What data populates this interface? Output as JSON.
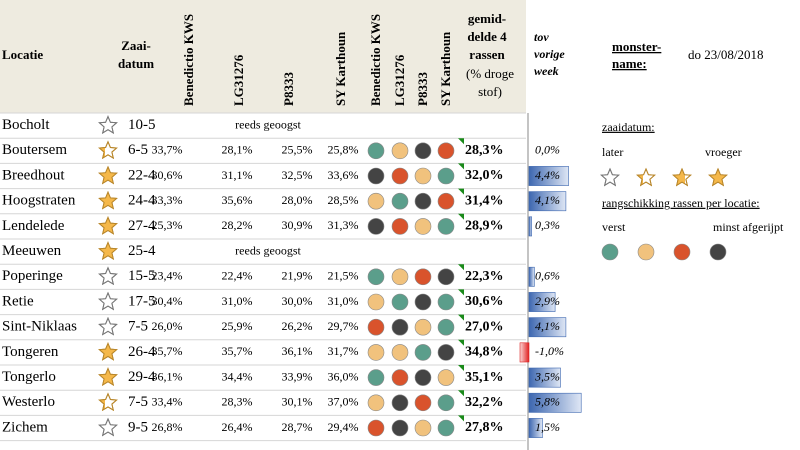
{
  "header": {
    "location": "Locatie",
    "sowing": [
      "Zaai-",
      "datum"
    ],
    "varieties": [
      "Benedictio KWS",
      "LG31276",
      "P8333",
      "SY Karthoun"
    ],
    "average": [
      "gemid-",
      "delde 4",
      "rassen"
    ],
    "average_unit": [
      "(% droge",
      "stof)"
    ],
    "change": [
      "tov",
      "vorige",
      "week"
    ]
  },
  "rows": [
    {
      "location": "Bocholt",
      "star": 0,
      "date": "10-5",
      "note": "reeds geoogst"
    },
    {
      "location": "Boutersem",
      "star": 1,
      "date": "6-5",
      "values": [
        "33,7%",
        "28,1%",
        "25,5%",
        "25,8%"
      ],
      "ranking": [
        "#5b9e8b",
        "#f1c27d",
        "#444444",
        "#d9532c"
      ],
      "average": "28,3%",
      "change": 0.0,
      "change_label": "0,0%"
    },
    {
      "location": "Breedhout",
      "star": 3,
      "date": "22-4",
      "values": [
        "30,6%",
        "31,1%",
        "32,5%",
        "33,6%"
      ],
      "ranking": [
        "#444444",
        "#d9532c",
        "#f1c27d",
        "#5b9e8b"
      ],
      "average": "32,0%",
      "change": 4.4,
      "change_label": "4,4%"
    },
    {
      "location": "Hoogstraten",
      "star": 3,
      "date": "24-4",
      "values": [
        "33,3%",
        "35,6%",
        "28,0%",
        "28,5%"
      ],
      "ranking": [
        "#f1c27d",
        "#5b9e8b",
        "#444444",
        "#d9532c"
      ],
      "average": "31,4%",
      "change": 4.1,
      "change_label": "4,1%"
    },
    {
      "location": "Lendelede",
      "star": 3,
      "date": "27-4",
      "values": [
        "25,3%",
        "28,2%",
        "30,9%",
        "31,3%"
      ],
      "ranking": [
        "#444444",
        "#d9532c",
        "#f1c27d",
        "#5b9e8b"
      ],
      "average": "28,9%",
      "change": 0.3,
      "change_label": "0,3%"
    },
    {
      "location": "Meeuwen",
      "star": 3,
      "date": "25-4",
      "note": "reeds geoogst"
    },
    {
      "location": "Poperinge",
      "star": 0,
      "date": "15-5",
      "values": [
        "23,4%",
        "22,4%",
        "21,9%",
        "21,5%"
      ],
      "ranking": [
        "#5b9e8b",
        "#f1c27d",
        "#d9532c",
        "#444444"
      ],
      "average": "22,3%",
      "change": 0.6,
      "change_label": "0,6%"
    },
    {
      "location": "Retie",
      "star": 0,
      "date": "17-5",
      "values": [
        "30,4%",
        "31,0%",
        "30,0%",
        "31,0%"
      ],
      "ranking": [
        "#f1c27d",
        "#5b9e8b",
        "#444444",
        "#5b9e8b"
      ],
      "average": "30,6%",
      "change": 2.9,
      "change_label": "2,9%"
    },
    {
      "location": "Sint-Niklaas",
      "star": 0,
      "date": "7-5",
      "values": [
        "26,0%",
        "25,9%",
        "26,2%",
        "29,7%"
      ],
      "ranking": [
        "#d9532c",
        "#444444",
        "#f1c27d",
        "#5b9e8b"
      ],
      "average": "27,0%",
      "change": 4.1,
      "change_label": "4,1%"
    },
    {
      "location": "Tongeren",
      "star": 3,
      "date": "26-4",
      "values": [
        "35,7%",
        "35,7%",
        "36,1%",
        "31,7%"
      ],
      "ranking": [
        "#f1c27d",
        "#f1c27d",
        "#5b9e8b",
        "#444444"
      ],
      "average": "34,8%",
      "change": -1.0,
      "change_label": "-1,0%"
    },
    {
      "location": "Tongerlo",
      "star": 3,
      "date": "29-4",
      "values": [
        "36,1%",
        "34,4%",
        "33,9%",
        "36,0%"
      ],
      "ranking": [
        "#5b9e8b",
        "#d9532c",
        "#444444",
        "#f1c27d"
      ],
      "average": "35,1%",
      "change": 3.5,
      "change_label": "3,5%"
    },
    {
      "location": "Westerlo",
      "star": 1,
      "date": "7-5",
      "values": [
        "33,4%",
        "28,3%",
        "30,1%",
        "37,0%"
      ],
      "ranking": [
        "#f1c27d",
        "#444444",
        "#d9532c",
        "#5b9e8b"
      ],
      "average": "32,2%",
      "change": 5.8,
      "change_label": "5,8%"
    },
    {
      "location": "Zichem",
      "star": 0,
      "date": "9-5",
      "values": [
        "26,8%",
        "26,4%",
        "28,7%",
        "29,4%"
      ],
      "ranking": [
        "#d9532c",
        "#444444",
        "#f1c27d",
        "#5b9e8b"
      ],
      "average": "27,8%",
      "change": 1.5,
      "change_label": "1,5%"
    }
  ],
  "side": {
    "sample_label": [
      "monster-",
      "name:"
    ],
    "sample_date": "do 23/08/2018",
    "sowing_title": "zaaidatum:",
    "later": "later",
    "earlier": "vroeger",
    "star_levels": [
      0,
      1,
      2,
      3
    ],
    "ranking_title": "rangschikking rassen per locatie:",
    "first": "verst",
    "last": "minst afgerijpt",
    "ranking_colors": [
      "#5b9e8b",
      "#f1c27d",
      "#d9532c",
      "#444444"
    ]
  }
}
